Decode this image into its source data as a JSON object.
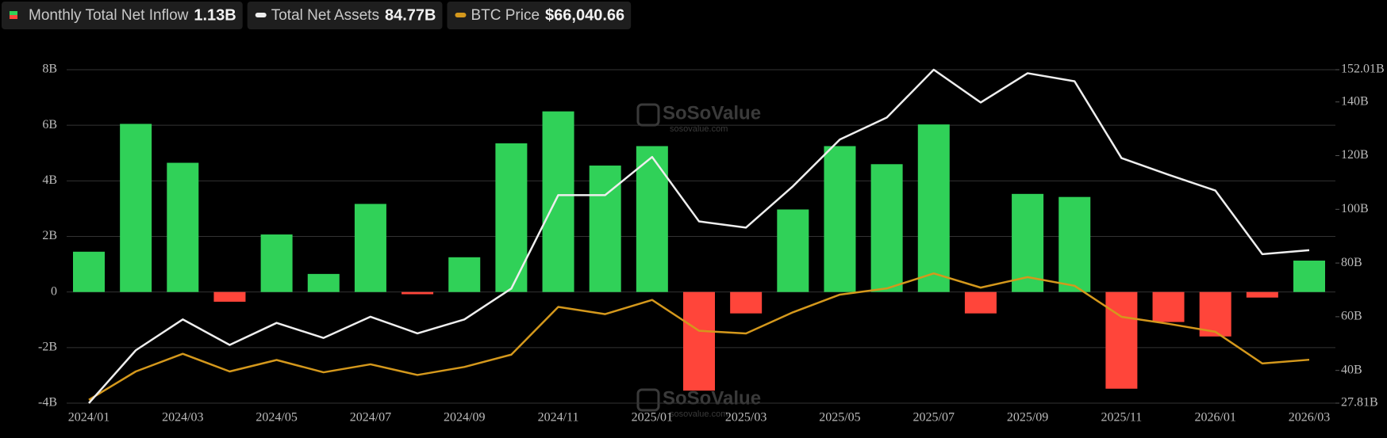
{
  "chart_data": {
    "type": "bar_line",
    "watermark": {
      "brand": "SoSoValue",
      "site": "sosovalue.com"
    },
    "categories": [
      "2024/01",
      null,
      "2024/03",
      null,
      "2024/05",
      null,
      "2024/07",
      null,
      "2024/09",
      null,
      "2024/11",
      null,
      "2025/01",
      null,
      "2025/03",
      null,
      "2025/05",
      null,
      "2025/07",
      null,
      "2025/09",
      null,
      "2025/11",
      null,
      "2026/01",
      null,
      "2026/03"
    ],
    "series": [
      {
        "name": "Monthly Total Net Inflow",
        "latest_label": "1.13B",
        "type": "bar",
        "axis": "y",
        "color": "#30d158",
        "negative_color": "#ff453a",
        "values": [
          1.45,
          6.05,
          4.65,
          -0.35,
          2.07,
          0.65,
          3.17,
          -0.08,
          1.25,
          5.35,
          6.5,
          4.55,
          5.25,
          -3.55,
          -0.77,
          2.97,
          5.25,
          4.6,
          6.03,
          -0.77,
          3.53,
          3.42,
          -3.48,
          -1.08,
          -1.6,
          -0.2,
          1.13
        ]
      },
      {
        "name": "Total Net Assets",
        "latest_label": "84.77B",
        "type": "line",
        "axis": "y2",
        "color": "#eeeeee",
        "values": [
          27.81,
          47.5,
          59,
          49.5,
          57.7,
          52.1,
          60,
          53.8,
          59,
          70.5,
          105.3,
          105.3,
          119.5,
          95.5,
          93.2,
          108.6,
          126,
          134.2,
          152,
          139.8,
          150.7,
          147.7,
          119.1,
          112.9,
          107,
          83.3,
          84.77
        ]
      },
      {
        "name": "BTC Price",
        "latest_label": "$66,040.66",
        "type": "line",
        "axis": "y3",
        "color": "#d4981c",
        "values": [
          42000,
          59000,
          69600,
          59000,
          65900,
          58500,
          63300,
          56900,
          61700,
          69100,
          97700,
          93400,
          101900,
          83400,
          81800,
          94500,
          105100,
          108800,
          117800,
          109300,
          115600,
          110400,
          91800,
          87600,
          82800,
          63800,
          66040.66
        ]
      }
    ],
    "ylim": [
      -4,
      8
    ],
    "yticks": [
      {
        "value": -4,
        "label": "-4B"
      },
      {
        "value": -2,
        "label": "-2B"
      },
      0,
      {
        "value": 2,
        "label": "2B"
      },
      {
        "value": 4,
        "label": "4B"
      },
      {
        "value": 6,
        "label": "6B"
      },
      {
        "value": 8,
        "label": "8B"
      }
    ],
    "y2lim": [
      27.81,
      152.01
    ],
    "y2ticks": [
      {
        "value": 27.81,
        "label": "27.81B"
      },
      {
        "value": 40,
        "label": "40B"
      },
      {
        "value": 60,
        "label": "60B"
      },
      {
        "value": 80,
        "label": "80B"
      },
      {
        "value": 100,
        "label": "100B"
      },
      {
        "value": 120,
        "label": "120B"
      },
      {
        "value": 140,
        "label": "140B"
      },
      {
        "value": 152.01,
        "label": "152.01B"
      }
    ],
    "y3lim": [
      40000,
      240000
    ],
    "grid": true
  }
}
